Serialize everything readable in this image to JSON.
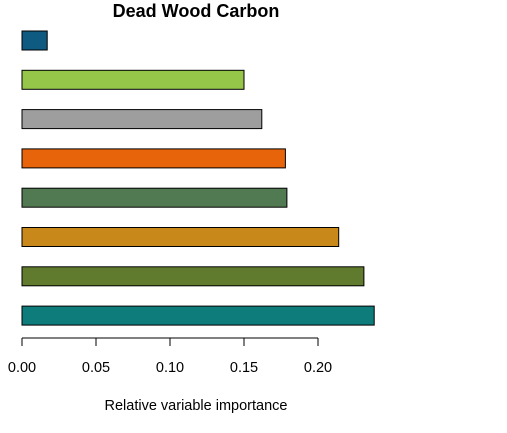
{
  "chart_data": {
    "type": "bar",
    "orientation": "horizontal",
    "title": "Dead Wood Carbon",
    "xlabel": "Relative variable importance",
    "ylabel": "",
    "xlim": [
      0,
      0.24
    ],
    "xticks": [
      0.0,
      0.05,
      0.1,
      0.15,
      0.2
    ],
    "xtick_labels": [
      "0.00",
      "0.05",
      "0.10",
      "0.15",
      "0.20"
    ],
    "grid": false,
    "bars": [
      {
        "value": 0.017,
        "color": "#0f5a80"
      },
      {
        "value": 0.15,
        "color": "#95c64a"
      },
      {
        "value": 0.162,
        "color": "#9e9e9e"
      },
      {
        "value": 0.178,
        "color": "#e8640a"
      },
      {
        "value": 0.179,
        "color": "#527a52"
      },
      {
        "value": 0.214,
        "color": "#c8891a"
      },
      {
        "value": 0.231,
        "color": "#607a2e"
      },
      {
        "value": 0.238,
        "color": "#0e7c7b"
      }
    ]
  }
}
